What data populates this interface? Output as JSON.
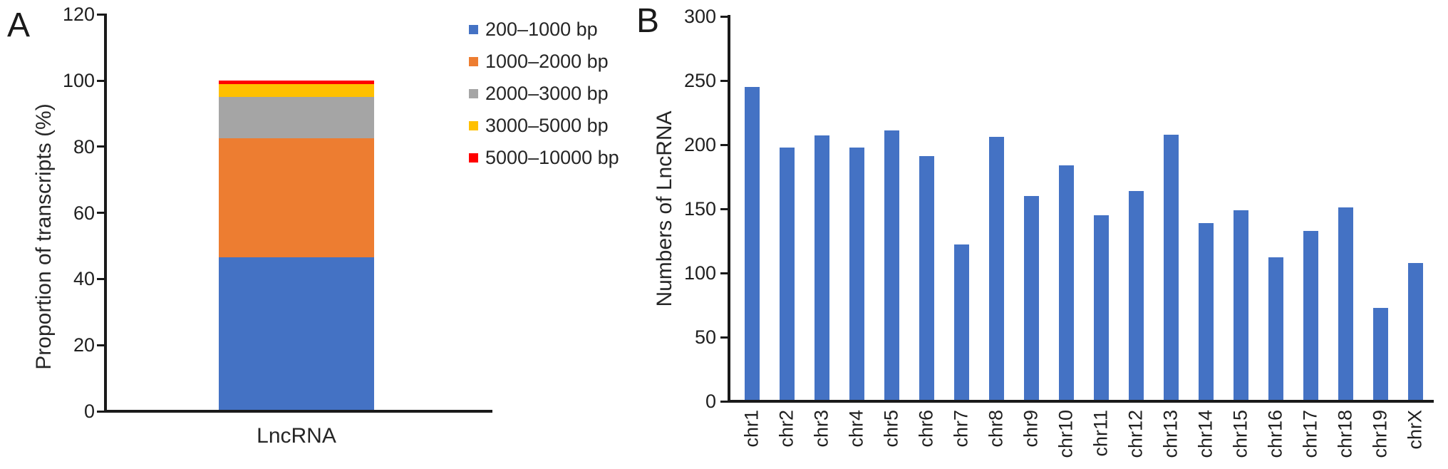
{
  "panels": {
    "a": {
      "label": "A"
    },
    "b": {
      "label": "B"
    }
  },
  "chart_data": [
    {
      "type": "stacked-bar",
      "panel": "A",
      "categories": [
        "LncRNA"
      ],
      "series": [
        {
          "name": "200–1000 bp",
          "color": "#4472C4",
          "values": [
            46.5
          ]
        },
        {
          "name": "1000–2000 bp",
          "color": "#ED7D31",
          "values": [
            36
          ]
        },
        {
          "name": "2000–3000 bp",
          "color": "#A5A5A5",
          "values": [
            12.5
          ]
        },
        {
          "name": "3000–5000 bp",
          "color": "#FFC000",
          "values": [
            4
          ]
        },
        {
          "name": "5000–10000 bp",
          "color": "#FF0000",
          "values": [
            1
          ]
        }
      ],
      "ylabel": "Proportion of transcripts (%)",
      "ylim": [
        0,
        120
      ],
      "yticks": [
        0,
        20,
        40,
        60,
        80,
        100,
        120
      ],
      "grid": false,
      "legend_position": "right-of-plot, top"
    },
    {
      "type": "bar",
      "panel": "B",
      "categories": [
        "chr1",
        "chr2",
        "chr3",
        "chr4",
        "chr5",
        "chr6",
        "chr7",
        "chr8",
        "chr9",
        "chr10",
        "chr11",
        "chr12",
        "chr13",
        "chr14",
        "chr15",
        "chr16",
        "chr17",
        "chr18",
        "chr19",
        "chrX"
      ],
      "values": [
        245,
        198,
        207,
        198,
        211,
        191,
        122,
        206,
        160,
        184,
        145,
        164,
        208,
        139,
        149,
        112,
        133,
        151,
        73,
        108
      ],
      "bar_color": "#4472C4",
      "ylabel": "Numbers of LncRNA",
      "ylim": [
        0,
        300
      ],
      "yticks": [
        0,
        50,
        100,
        150,
        200,
        250,
        300
      ],
      "grid": false,
      "x_tick_rotation": -90
    }
  ]
}
